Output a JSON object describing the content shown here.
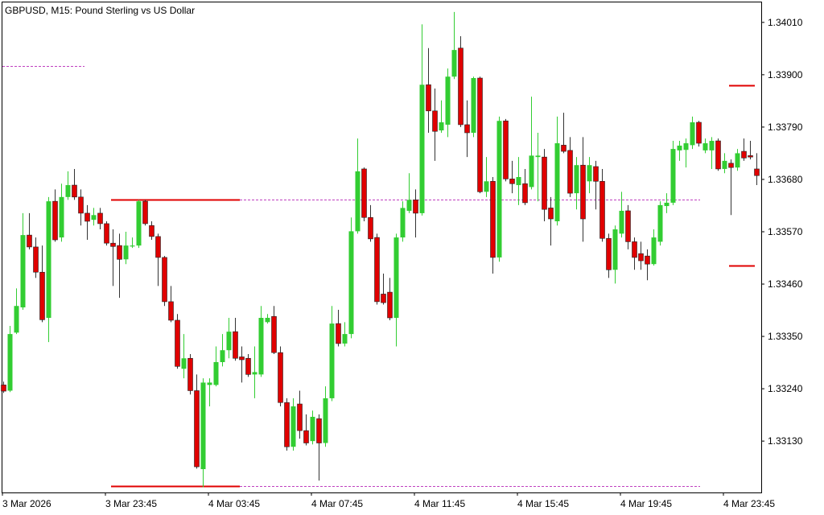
{
  "chart_data": {
    "type": "candlestick",
    "title": "GBPUSD, M15:  Pound Sterling vs US Dollar",
    "bull_color": "#32cd32",
    "bear_color": "#e00000",
    "open": [
      1.33248,
      1.33236,
      1.33358,
      1.33411,
      1.33563,
      1.33538,
      1.33485,
      1.33389,
      1.33634,
      1.33558,
      1.33643,
      1.33668,
      1.33643,
      1.33609,
      1.33595,
      1.33609,
      1.33587,
      1.33546,
      1.33541,
      1.33512,
      1.33539,
      1.33541,
      1.33634,
      1.33583,
      1.3356,
      1.33516,
      1.33423,
      1.33384,
      1.33282,
      1.33304,
      1.33236,
      1.33071,
      1.33248,
      1.33248,
      1.33296,
      1.33321,
      1.3336,
      1.33307,
      1.33304,
      1.3327,
      1.3327,
      1.3338,
      1.33392,
      1.33316,
      1.33211,
      1.33118,
      1.33208,
      1.33152,
      1.3313,
      1.33177,
      1.33126,
      1.3322,
      1.33377,
      1.33335,
      1.33355,
      1.33571,
      1.33702,
      1.336,
      1.33558,
      1.33439,
      1.33443,
      1.33389,
      1.33558,
      1.33614,
      1.33637,
      1.33609,
      1.33879,
      1.33824,
      1.33783,
      1.33795,
      1.33896,
      1.33956,
      1.33795,
      1.33778,
      1.33893,
      1.33654,
      1.33676,
      1.33516,
      1.33803,
      1.33681,
      1.33668,
      1.33671,
      1.33664,
      1.33727,
      1.33727,
      1.3362,
      1.33592,
      1.33752,
      1.33741,
      1.33651,
      1.3371,
      1.33676,
      1.33707,
      1.33676,
      1.33556,
      1.3349,
      1.33566,
      1.33614,
      1.33549,
      1.33524,
      1.33519,
      1.33502,
      1.33549,
      1.33624,
      1.33631,
      1.33741,
      1.33742,
      1.33752,
      1.338,
      1.33741,
      1.33741,
      1.33761,
      1.33702,
      1.33714,
      1.33705,
      1.33739,
      1.3373,
      1.33702
    ],
    "high": [
      1.33255,
      1.33372,
      1.33451,
      1.33609,
      1.33609,
      1.33558,
      1.33541,
      1.33643,
      1.33659,
      1.33671,
      1.33697,
      1.33702,
      1.33659,
      1.33626,
      1.3362,
      1.3362,
      1.33592,
      1.33575,
      1.33566,
      1.3357,
      1.33558,
      1.33637,
      1.33637,
      1.33592,
      1.33566,
      1.33519,
      1.33456,
      1.33397,
      1.33355,
      1.33313,
      1.3327,
      1.33262,
      1.33262,
      1.33329,
      1.33355,
      1.33389,
      1.33389,
      1.33329,
      1.33313,
      1.33329,
      1.33414,
      1.33397,
      1.33414,
      1.33329,
      1.3322,
      1.3322,
      1.33236,
      1.33186,
      1.33194,
      1.33186,
      1.33245,
      1.33414,
      1.33406,
      1.3338,
      1.336,
      1.33766,
      1.33705,
      1.33626,
      1.33566,
      1.33482,
      1.33473,
      1.33566,
      1.33634,
      1.33693,
      1.33659,
      1.34006,
      1.33956,
      1.33871,
      1.33846,
      1.33913,
      1.34032,
      1.33981,
      1.33846,
      1.33896,
      1.33896,
      1.33727,
      1.33685,
      1.33812,
      1.33807,
      1.33719,
      1.33727,
      1.33702,
      1.33854,
      1.33778,
      1.33744,
      1.33643,
      1.33812,
      1.3382,
      1.33769,
      1.33727,
      1.33769,
      1.33727,
      1.33719,
      1.33702,
      1.33566,
      1.33583,
      1.33654,
      1.33626,
      1.33558,
      1.33549,
      1.33533,
      1.33575,
      1.33634,
      1.33651,
      1.33761,
      1.33761,
      1.33766,
      1.33812,
      1.33803,
      1.33766,
      1.33769,
      1.33766,
      1.33735,
      1.33722,
      1.33744,
      1.33766,
      1.33761,
      1.33735
    ],
    "low": [
      1.33231,
      1.33233,
      1.33355,
      1.33406,
      1.33533,
      1.33473,
      1.3338,
      1.33338,
      1.33549,
      1.33549,
      1.33637,
      1.33637,
      1.33583,
      1.33553,
      1.33583,
      1.33575,
      1.33541,
      1.33456,
      1.33431,
      1.33502,
      1.33536,
      1.33536,
      1.33583,
      1.33553,
      1.33456,
      1.33414,
      1.3338,
      1.33282,
      1.33262,
      1.33228,
      1.33072,
      1.33033,
      1.33203,
      1.33245,
      1.33287,
      1.33304,
      1.33299,
      1.33253,
      1.33265,
      1.3322,
      1.33265,
      1.33377,
      1.33313,
      1.33203,
      1.3311,
      1.3311,
      1.33135,
      1.33121,
      1.33123,
      1.33047,
      1.33118,
      1.33214,
      1.33329,
      1.33329,
      1.33346,
      1.33566,
      1.33592,
      1.33549,
      1.33417,
      1.33417,
      1.33384,
      1.33329,
      1.33549,
      1.33609,
      1.33558,
      1.33604,
      1.33778,
      1.33719,
      1.33778,
      1.33769,
      1.33891,
      1.3379,
      1.33727,
      1.33769,
      1.33651,
      1.33643,
      1.33482,
      1.33507,
      1.33676,
      1.33651,
      1.33626,
      1.33626,
      1.33659,
      1.33634,
      1.33592,
      1.33541,
      1.33583,
      1.33735,
      1.33643,
      1.33617,
      1.33549,
      1.33651,
      1.33617,
      1.33549,
      1.33473,
      1.33461,
      1.33558,
      1.33533,
      1.3349,
      1.3349,
      1.33468,
      1.33499,
      1.33541,
      1.33609,
      1.33626,
      1.33719,
      1.33705,
      1.33744,
      1.33749,
      1.33735,
      1.33702,
      1.33698,
      1.33693,
      1.33605,
      1.33698,
      1.33719,
      1.33722,
      1.33668
    ],
    "close": [
      1.33235,
      1.33355,
      1.33414,
      1.33563,
      1.33538,
      1.33485,
      1.33385,
      1.33634,
      1.33553,
      1.33643,
      1.33668,
      1.33643,
      1.33609,
      1.33592,
      1.33605,
      1.33587,
      1.33546,
      1.33539,
      1.33512,
      1.33541,
      1.33541,
      1.33634,
      1.33587,
      1.3356,
      1.33516,
      1.33423,
      1.33384,
      1.33287,
      1.33304,
      1.33236,
      1.33076,
      1.33253,
      1.33253,
      1.33296,
      1.33321,
      1.3336,
      1.33304,
      1.33301,
      1.3327,
      1.33275,
      1.33389,
      1.33389,
      1.33316,
      1.33211,
      1.33118,
      1.33203,
      1.33152,
      1.33126,
      1.33181,
      1.33126,
      1.3322,
      1.33377,
      1.33335,
      1.33355,
      1.33571,
      1.33697,
      1.336,
      1.33555,
      1.33423,
      1.33421,
      1.33389,
      1.33558,
      1.3362,
      1.33637,
      1.33609,
      1.33879,
      1.33824,
      1.33781,
      1.338,
      1.33896,
      1.33952,
      1.33795,
      1.33778,
      1.33893,
      1.33654,
      1.33676,
      1.33516,
      1.33803,
      1.33681,
      1.33671,
      1.33685,
      1.33631,
      1.3373,
      1.3373,
      1.33617,
      1.33597,
      1.33756,
      1.33739,
      1.33651,
      1.3371,
      1.33597,
      1.3371,
      1.33676,
      1.33556,
      1.3349,
      1.33575,
      1.33614,
      1.33549,
      1.33516,
      1.33509,
      1.33502,
      1.33558,
      1.33626,
      1.33631,
      1.33744,
      1.33751,
      1.33756,
      1.338,
      1.33756,
      1.33756,
      1.33761,
      1.33702,
      1.33719,
      1.33705,
      1.33735,
      1.33725,
      1.33727,
      1.33688
    ],
    "xlim": [
      -0.125,
      117.75
    ],
    "ylim": [
      1.33022,
      1.34052
    ],
    "yticks": [
      {
        "value": 1.3401,
        "label": "1.34010"
      },
      {
        "value": 1.339,
        "label": "1.33900"
      },
      {
        "value": 1.3379,
        "label": "1.33790"
      },
      {
        "value": 1.3368,
        "label": "1.33680"
      },
      {
        "value": 1.3357,
        "label": "1.33570"
      },
      {
        "value": 1.3346,
        "label": "1.33460"
      },
      {
        "value": 1.3335,
        "label": "1.33350"
      },
      {
        "value": 1.3324,
        "label": "1.33240"
      },
      {
        "value": 1.3313,
        "label": "1.33130"
      }
    ],
    "xticks": [
      {
        "value": 0,
        "label": "3 Mar 2026"
      },
      {
        "value": 16,
        "label": "3 Mar 23:45"
      },
      {
        "value": 32,
        "label": "4 Mar 03:45"
      },
      {
        "value": 48,
        "label": "4 Mar 07:45"
      },
      {
        "value": 64,
        "label": "4 Mar 11:45"
      },
      {
        "value": 80,
        "label": "4 Mar 15:45"
      },
      {
        "value": 96,
        "label": "4 Mar 19:45"
      },
      {
        "value": 112,
        "label": "4 Mar 23:45"
      }
    ],
    "levels": [
      {
        "value": 1.33637,
        "color": "#e00000",
        "extension_color": "#c040c0"
      },
      {
        "value": 1.33035,
        "color": "#e00000",
        "extension_color": "#c040c0"
      },
      {
        "value": 1.33918,
        "color": "#c040c0"
      },
      {
        "value": 1.33878,
        "color": "#e00000"
      },
      {
        "value": 1.33499,
        "color": "#e00000"
      }
    ]
  }
}
